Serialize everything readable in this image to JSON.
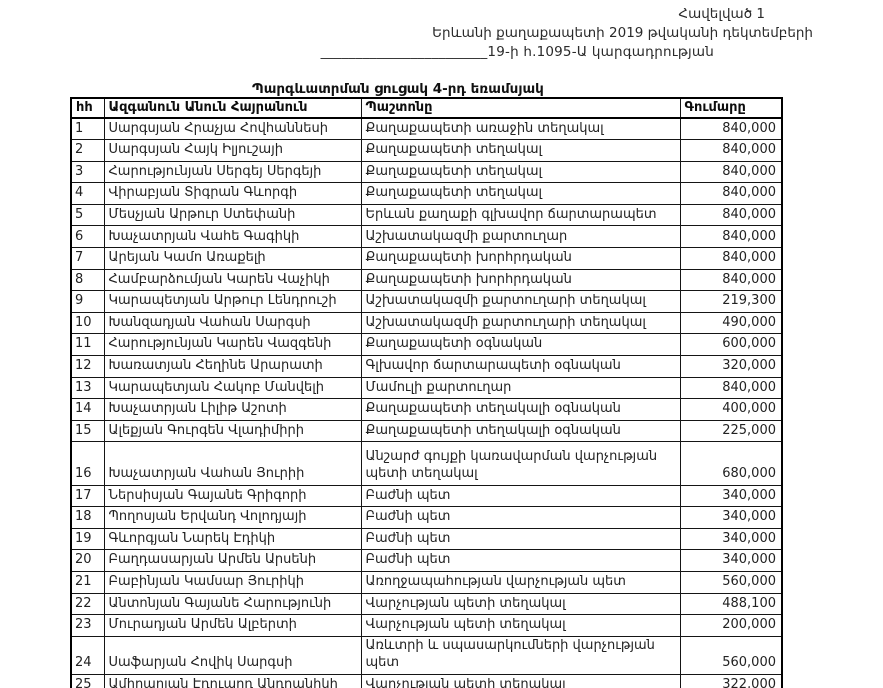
{
  "doc": {
    "header_lines": [
      "Հավելված 1",
      "Երևանի քաղաքապետի 2019 թվականի դեկտեմբերի",
      "________________________19-ի հ.1095-Ա  կարգադրության"
    ],
    "title": "Պարգևատրման ցուցակ 4-րդ եռամսյակ"
  },
  "table": {
    "columns": {
      "no": "հհ",
      "name": "Ազգանուն Անուն Հայրանուն",
      "position": "Պաշտոնը",
      "amount": "Գումարը"
    },
    "rows": [
      {
        "no": "1",
        "name": "Սարգսյան Հրաչյա Հովհաննեսի",
        "position": "Քաղաքապետի առաջին տեղակալ",
        "amount": "840,000",
        "tall": false
      },
      {
        "no": "2",
        "name": "Սարգսյան Հայկ Իլյուշայի",
        "position": "Քաղաքապետի տեղակալ",
        "amount": "840,000",
        "tall": false
      },
      {
        "no": "3",
        "name": "Հարությունյան Սերգեյ Սերգեյի",
        "position": "Քաղաքապետի տեղակալ",
        "amount": "840,000",
        "tall": false
      },
      {
        "no": "4",
        "name": "Վիրաբյան Տիգրան Գևորգի",
        "position": "Քաղաքապետի տեղակալ",
        "amount": "840,000",
        "tall": false
      },
      {
        "no": "5",
        "name": "Մեսչյան Արթուր Ստեփանի",
        "position": "Երևան քաղաքի գլխավոր ճարտարապետ",
        "amount": "840,000",
        "tall": false
      },
      {
        "no": "6",
        "name": "Խաչատրյան Վահե Գագիկի",
        "position": "Աշխատակազմի քարտուղար",
        "amount": "840,000",
        "tall": false
      },
      {
        "no": "7",
        "name": "Արեյան Կամո Առաքելի",
        "position": "Քաղաքապետի խորհրդական",
        "amount": "840,000",
        "tall": false
      },
      {
        "no": "8",
        "name": "Համբարձումյան Կարեն Վաչիկի",
        "position": "Քաղաքապետի խորհրդական",
        "amount": "840,000",
        "tall": false
      },
      {
        "no": "9",
        "name": "Կարապետյան Արթուր Լենդրուշի",
        "position": "Աշխատակազմի քարտուղարի տեղակալ",
        "amount": "219,300",
        "tall": false
      },
      {
        "no": "10",
        "name": "Խանզադյան Վահան Սարգսի",
        "position": "Աշխատակազմի քարտուղարի տեղակալ",
        "amount": "490,000",
        "tall": false
      },
      {
        "no": "11",
        "name": "Հարությունյան Կարեն Վազգենի",
        "position": "Քաղաքապետի օգնական",
        "amount": "600,000",
        "tall": false
      },
      {
        "no": "12",
        "name": "Խառատյան Հեղինե Արարատի",
        "position": "Գլխավոր ճարտարապետի օգնական",
        "amount": "320,000",
        "tall": false
      },
      {
        "no": "13",
        "name": "Կարապետյան Հակոբ Մանվելի",
        "position": "Մամուլի քարտուղար",
        "amount": "840,000",
        "tall": false
      },
      {
        "no": "14",
        "name": "Խաչատրյան Լիլիթ Աշոտի",
        "position": "Քաղաքապետի տեղակալի օգնական",
        "amount": "400,000",
        "tall": false
      },
      {
        "no": "15",
        "name": "Ալեքյան Գուրգեն Վլադիմիրի",
        "position": "Քաղաքապետի տեղակալի օգնական",
        "amount": "225,000",
        "tall": false
      },
      {
        "no": "16",
        "name": "Խաչատրյան Վահան Յուրիի",
        "position": "Անշարժ գույքի կառավարման վարչության պետի տեղակալ",
        "amount": "680,000",
        "tall": true
      },
      {
        "no": "17",
        "name": "Ներսիսյան Գայանե Գրիգորի",
        "position": "Բաժնի պետ",
        "amount": "340,000",
        "tall": false
      },
      {
        "no": "18",
        "name": "Պողոսյան Երվանդ Վոլոդյայի",
        "position": "Բաժնի պետ",
        "amount": "340,000",
        "tall": false
      },
      {
        "no": "19",
        "name": "Գևորգյան Նարեկ Էդիկի",
        "position": "Բաժնի պետ",
        "amount": "340,000",
        "tall": false
      },
      {
        "no": "20",
        "name": "Բաղդասարյան Արմեն Արսենի",
        "position": "Բաժնի պետ",
        "amount": "340,000",
        "tall": false
      },
      {
        "no": "21",
        "name": "Բաբինյան Կամսար Յուրիկի",
        "position": "Առողջապահության վարչության պետ",
        "amount": "560,000",
        "tall": false
      },
      {
        "no": "22",
        "name": "Անտոնյան Գայանե Հարությունի",
        "position": "Վարչության պետի տեղակալ",
        "amount": "488,100",
        "tall": false
      },
      {
        "no": "23",
        "name": "Մուրադյան Արմեն Ալբերտի",
        "position": "Վարչության պետի տեղակալ",
        "amount": "200,000",
        "tall": false
      },
      {
        "no": "24",
        "name": "Սաֆարյան Հովիկ Սարգսի",
        "position": "Առևտրի և սպասարկումների վարչության պետ",
        "amount": "560,000",
        "tall": false
      },
      {
        "no": "25",
        "name": "Ամիրաղյան Էդուարդ Անդրանիկի",
        "position": "Վարչության պետի տեղակալ",
        "amount": "322,000",
        "tall": false
      }
    ]
  }
}
